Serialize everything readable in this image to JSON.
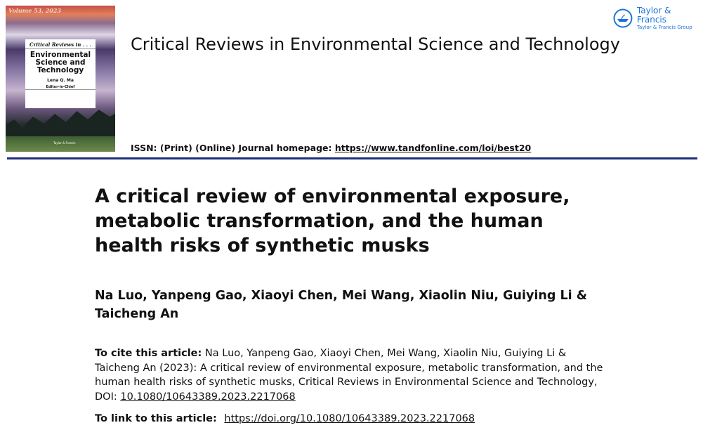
{
  "cover": {
    "volume": "Volume 53, 2023",
    "series": "Critical Reviews in . . .",
    "title": "Environmental Science and Technology",
    "editor": "Lena Q. Ma",
    "editor_role": "Editor-in-Chief",
    "publisher": "Taylor & Francis"
  },
  "journal": {
    "name": "Critical Reviews in Environmental Science and Technology",
    "issn_label": "ISSN: (Print) (Online) Journal homepage:",
    "homepage_url": "https://www.tandfonline.com/loi/best20"
  },
  "publisher_logo": {
    "name": "Taylor & Francis",
    "group": "Taylor & Francis Group",
    "color": "#1a73d9"
  },
  "article": {
    "title": "A critical review of environmental exposure, metabolic transformation, and the human health risks of synthetic musks",
    "authors": "Na Luo, Yanpeng Gao, Xiaoyi Chen, Mei Wang, Xiaolin Niu, Guiying Li & Taicheng An",
    "cite_label": "To cite this article:",
    "cite_text": "Na Luo, Yanpeng Gao, Xiaoyi Chen, Mei Wang, Xiaolin Niu, Guiying Li & Taicheng An (2023): A critical review of environmental exposure, metabolic transformation, and the human health risks of synthetic musks, Critical Reviews in Environmental Science and Technology, DOI:",
    "doi": "10.1080/10643389.2023.2217068",
    "link_label": "To link to this article:",
    "link_url": "https://doi.org/10.1080/10643389.2023.2217068"
  },
  "colors": {
    "rule": "#1f2f7a"
  }
}
